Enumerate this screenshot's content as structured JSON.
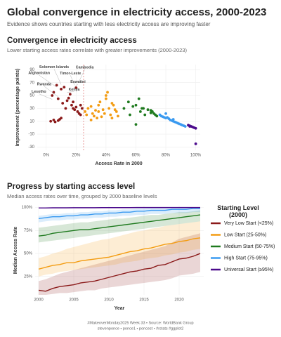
{
  "header": {
    "title": "Global convergence in electricity access, 2000-2023",
    "subtitle": "Evidence shows countries starting with less electricity access are improving faster"
  },
  "chart_data": [
    {
      "type": "scatter",
      "title": "Convergence in electricity access",
      "subtitle": "Lower starting access rates correlate with greater improvements (2000-2023)",
      "x_label": "Access Rate in 2000",
      "y_label": "Improvement (percentage points)",
      "xlim": [
        -6,
        103
      ],
      "ylim": [
        -35,
        98
      ],
      "xticks": [
        {
          "value": 0,
          "label": "0%"
        },
        {
          "value": 20,
          "label": "20%"
        },
        {
          "value": 40,
          "label": "40%"
        },
        {
          "value": 60,
          "label": "60%"
        },
        {
          "value": 80,
          "label": "80%"
        },
        {
          "value": 100,
          "label": "100%"
        }
      ],
      "yticks": [
        -30,
        -10,
        10,
        30,
        50,
        70,
        90
      ],
      "grid": true,
      "threshold": 25,
      "series": [
        {
          "color": "#8b1a1a",
          "x": [
            3,
            5,
            6,
            8,
            9,
            10,
            4,
            12,
            7,
            15,
            14,
            16,
            17,
            18,
            19,
            20,
            21,
            22,
            23,
            11,
            13,
            8,
            24,
            18,
            5,
            10,
            20,
            23
          ],
          "values": [
            10,
            12,
            9,
            11,
            13,
            15,
            50,
            63,
            66,
            46,
            42,
            52,
            35,
            30,
            28,
            32,
            25,
            22,
            20,
            38,
            30,
            45,
            30,
            40,
            55,
            60,
            62,
            35
          ]
        },
        {
          "color": "#f39c12",
          "x": [
            26,
            27,
            28,
            30,
            31,
            32,
            33,
            34,
            35,
            36,
            37,
            38,
            39,
            40,
            41,
            42,
            43,
            44,
            45,
            46,
            47,
            48,
            30,
            35,
            40,
            44
          ],
          "values": [
            25,
            20,
            30,
            33,
            22,
            18,
            27,
            15,
            25,
            40,
            17,
            28,
            22,
            45,
            55,
            30,
            20,
            38,
            35,
            28,
            25,
            18,
            12,
            35,
            50,
            15
          ]
        },
        {
          "color": "#1f7a1f",
          "x": [
            52,
            55,
            56,
            58,
            60,
            62,
            63,
            65,
            66,
            68,
            70,
            71,
            72,
            73,
            74,
            60,
            64,
            70
          ],
          "values": [
            30,
            40,
            20,
            33,
            35,
            45,
            25,
            30,
            20,
            28,
            27,
            25,
            22,
            20,
            18,
            5,
            30,
            23
          ]
        },
        {
          "color": "#3a9af0",
          "x": [
            76,
            77,
            78,
            79,
            80,
            81,
            82,
            83,
            84,
            85,
            86,
            87,
            88,
            89,
            90,
            91,
            92,
            93,
            80,
            85
          ],
          "values": [
            20,
            18,
            17,
            16,
            15,
            16,
            14,
            12,
            11,
            10,
            9,
            8,
            7,
            6,
            5,
            4,
            3,
            2,
            22,
            13
          ]
        },
        {
          "color": "#4b0a8c",
          "x": [
            95,
            96,
            97,
            98,
            99,
            100,
            100,
            96
          ],
          "values": [
            4,
            3,
            2,
            1,
            0,
            -1,
            -25,
            2
          ]
        }
      ],
      "annotations": [
        {
          "text": "Solomon Islands",
          "x": 10,
          "y": 67
        },
        {
          "text": "Cambodia",
          "x": 22,
          "y": 72
        },
        {
          "text": "Afghanistan",
          "x": 7,
          "y": 63
        },
        {
          "text": "Timor-Leste",
          "x": 19,
          "y": 66
        },
        {
          "text": "Rwanda",
          "x": 8,
          "y": 48
        },
        {
          "text": "Eswatini",
          "x": 17,
          "y": 59
        },
        {
          "text": "Kenya",
          "x": 14,
          "y": 55
        },
        {
          "text": "Lesotho",
          "x": 4,
          "y": 44
        }
      ]
    },
    {
      "type": "line",
      "title": "Progress by starting access level",
      "subtitle": "Median access rates over time, grouped by 2000 baseline levels",
      "x_label": "Year",
      "y_label": "Median Access Rate",
      "legend_title": "Starting Level (2000)",
      "xlim": [
        1999.5,
        2023.5
      ],
      "ylim": [
        5,
        102
      ],
      "xticks": [
        2000,
        2005,
        2010,
        2015,
        2020
      ],
      "yticks": [
        {
          "value": 25,
          "label": "25%"
        },
        {
          "value": 50,
          "label": "50%"
        },
        {
          "value": 75,
          "label": "75%"
        },
        {
          "value": 100,
          "label": "100%"
        }
      ],
      "grid": true,
      "x": [
        2000,
        2001,
        2002,
        2003,
        2004,
        2005,
        2006,
        2007,
        2008,
        2009,
        2010,
        2011,
        2012,
        2013,
        2014,
        2015,
        2016,
        2017,
        2018,
        2019,
        2020,
        2021,
        2022,
        2023
      ],
      "series": [
        {
          "name": "Very Low Start (<25%)",
          "color": "#8b1a1a",
          "values": [
            10,
            9,
            12,
            14,
            15,
            16,
            18,
            19,
            20,
            22,
            24,
            26,
            28,
            30,
            31,
            33,
            34,
            37,
            38,
            41,
            44,
            45,
            47,
            50
          ],
          "lower": [
            5,
            5,
            6,
            7,
            7,
            8,
            9,
            10,
            10,
            12,
            13,
            14,
            15,
            16,
            17,
            18,
            19,
            20,
            21,
            23,
            26,
            27,
            28,
            30
          ],
          "upper": [
            20,
            22,
            25,
            28,
            30,
            32,
            34,
            36,
            38,
            40,
            42,
            44,
            46,
            48,
            50,
            52,
            54,
            56,
            58,
            62,
            66,
            68,
            70,
            72
          ]
        },
        {
          "name": "Low Start (25-50%)",
          "color": "#f39c12",
          "values": [
            33,
            35,
            37,
            38,
            40,
            40,
            42,
            43,
            44,
            45,
            46,
            48,
            50,
            52,
            53,
            55,
            56,
            58,
            60,
            61,
            63,
            64,
            66,
            67
          ],
          "lower": [
            25,
            27,
            28,
            30,
            31,
            32,
            33,
            34,
            35,
            36,
            37,
            38,
            40,
            41,
            42,
            44,
            45,
            46,
            48,
            49,
            51,
            52,
            54,
            55
          ],
          "upper": [
            45,
            47,
            50,
            52,
            55,
            57,
            59,
            61,
            63,
            65,
            66,
            68,
            70,
            72,
            74,
            75,
            77,
            78,
            80,
            81,
            82,
            83,
            84,
            85
          ]
        },
        {
          "name": "Medium Start (50-75%)",
          "color": "#1f7a1f",
          "values": [
            69,
            70,
            72,
            73,
            74,
            75,
            76,
            76,
            77,
            78,
            79,
            80,
            81,
            82,
            83,
            84,
            85,
            86,
            87,
            88,
            89,
            90,
            91,
            92
          ],
          "lower": [
            62,
            63,
            64,
            65,
            66,
            67,
            68,
            69,
            70,
            71,
            72,
            73,
            74,
            75,
            76,
            77,
            78,
            79,
            80,
            81,
            82,
            83,
            84,
            85
          ],
          "upper": [
            78,
            79,
            80,
            81,
            82,
            83,
            84,
            84,
            85,
            86,
            87,
            88,
            88,
            89,
            90,
            91,
            92,
            92,
            93,
            94,
            95,
            95,
            96,
            97
          ]
        },
        {
          "name": "High Start (75-95%)",
          "color": "#3a9af0",
          "values": [
            88,
            89,
            90,
            90,
            91,
            91,
            92,
            92,
            93,
            93,
            94,
            94,
            95,
            95,
            96,
            96,
            97,
            97,
            97,
            98,
            98,
            98,
            99,
            99
          ],
          "lower": [
            84,
            85,
            86,
            86,
            87,
            87,
            88,
            88,
            89,
            89,
            90,
            90,
            91,
            91,
            92,
            92,
            93,
            93,
            93,
            94,
            94,
            94,
            95,
            95
          ],
          "upper": [
            91,
            92,
            93,
            93,
            94,
            94,
            95,
            95,
            96,
            96,
            97,
            97,
            98,
            98,
            99,
            99,
            100,
            100,
            100,
            100,
            100,
            100,
            100,
            100
          ]
        },
        {
          "name": "Universal Start (≥95%)",
          "color": "#4b0a8c",
          "values": [
            99.6,
            99.6,
            99.7,
            99.7,
            99.7,
            99.8,
            99.8,
            99.8,
            99.8,
            99.9,
            99.9,
            99.9,
            99.9,
            99.9,
            100,
            100,
            100,
            100,
            100,
            100,
            100,
            100,
            100,
            100
          ]
        }
      ]
    }
  ],
  "footer": [
    "#MakeoverMonday2025 Week 33 • Source: WorldBank Group",
    "stevenponce • ponce1 • poncest • #rstats #ggplot2"
  ]
}
